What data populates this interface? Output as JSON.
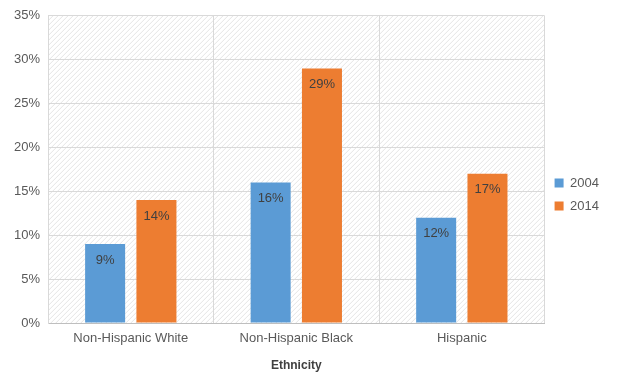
{
  "chart_data": {
    "type": "bar",
    "x_label": "Ethnicity",
    "categories": [
      "Non-Hispanic White",
      "Non-Hispanic Black",
      "Hispanic"
    ],
    "series": [
      {
        "name": "2004",
        "color": "#5B9BD5",
        "values": [
          9,
          16,
          12
        ],
        "value_labels": [
          "9%",
          "16%",
          "12%"
        ]
      },
      {
        "name": "2014",
        "color": "#ED7D31",
        "values": [
          14,
          29,
          17
        ],
        "value_labels": [
          "14%",
          "29%",
          "17%"
        ]
      }
    ],
    "ylim": [
      0,
      35
    ],
    "yticks": [
      {
        "value": 0,
        "label": "0%"
      },
      {
        "value": 5,
        "label": "5%"
      },
      {
        "value": 10,
        "label": "10%"
      },
      {
        "value": 15,
        "label": "15%"
      },
      {
        "value": 20,
        "label": "20%"
      },
      {
        "value": 25,
        "label": "25%"
      },
      {
        "value": 30,
        "label": "30%"
      },
      {
        "value": 35,
        "label": "35%"
      }
    ],
    "grid": true,
    "legend": "right",
    "data_labels": true
  }
}
